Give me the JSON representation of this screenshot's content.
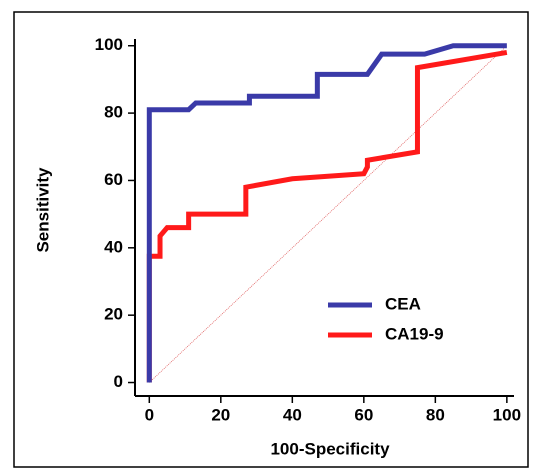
{
  "chart_data": {
    "type": "line",
    "x_label": "100-Specificity",
    "y_label": "Sensitivity",
    "xlim": [
      -4,
      102
    ],
    "ylim": [
      -4,
      102
    ],
    "xticks": [
      0,
      20,
      40,
      60,
      80,
      100
    ],
    "yticks": [
      0,
      20,
      40,
      60,
      80,
      100
    ],
    "series": [
      {
        "name": "CEA",
        "color": "#3a3aa8",
        "x": [
          0,
          0,
          11,
          13,
          28,
          28,
          47,
          47,
          61,
          65,
          77,
          85,
          100
        ],
        "values": [
          0,
          81,
          81,
          83,
          83,
          85,
          85,
          91.5,
          91.5,
          97.5,
          97.5,
          100,
          100
        ]
      },
      {
        "name": "CA19-9",
        "color": "#ff1a1a",
        "x": [
          0,
          0,
          3,
          3,
          5,
          11,
          11,
          27,
          27,
          40,
          60,
          61,
          61,
          75,
          75,
          100
        ],
        "values": [
          0,
          37.5,
          37.5,
          43.5,
          46,
          46,
          50,
          50,
          58,
          60.5,
          62,
          64,
          66,
          68.5,
          93.5,
          98
        ]
      }
    ],
    "legend": "lower-right"
  }
}
